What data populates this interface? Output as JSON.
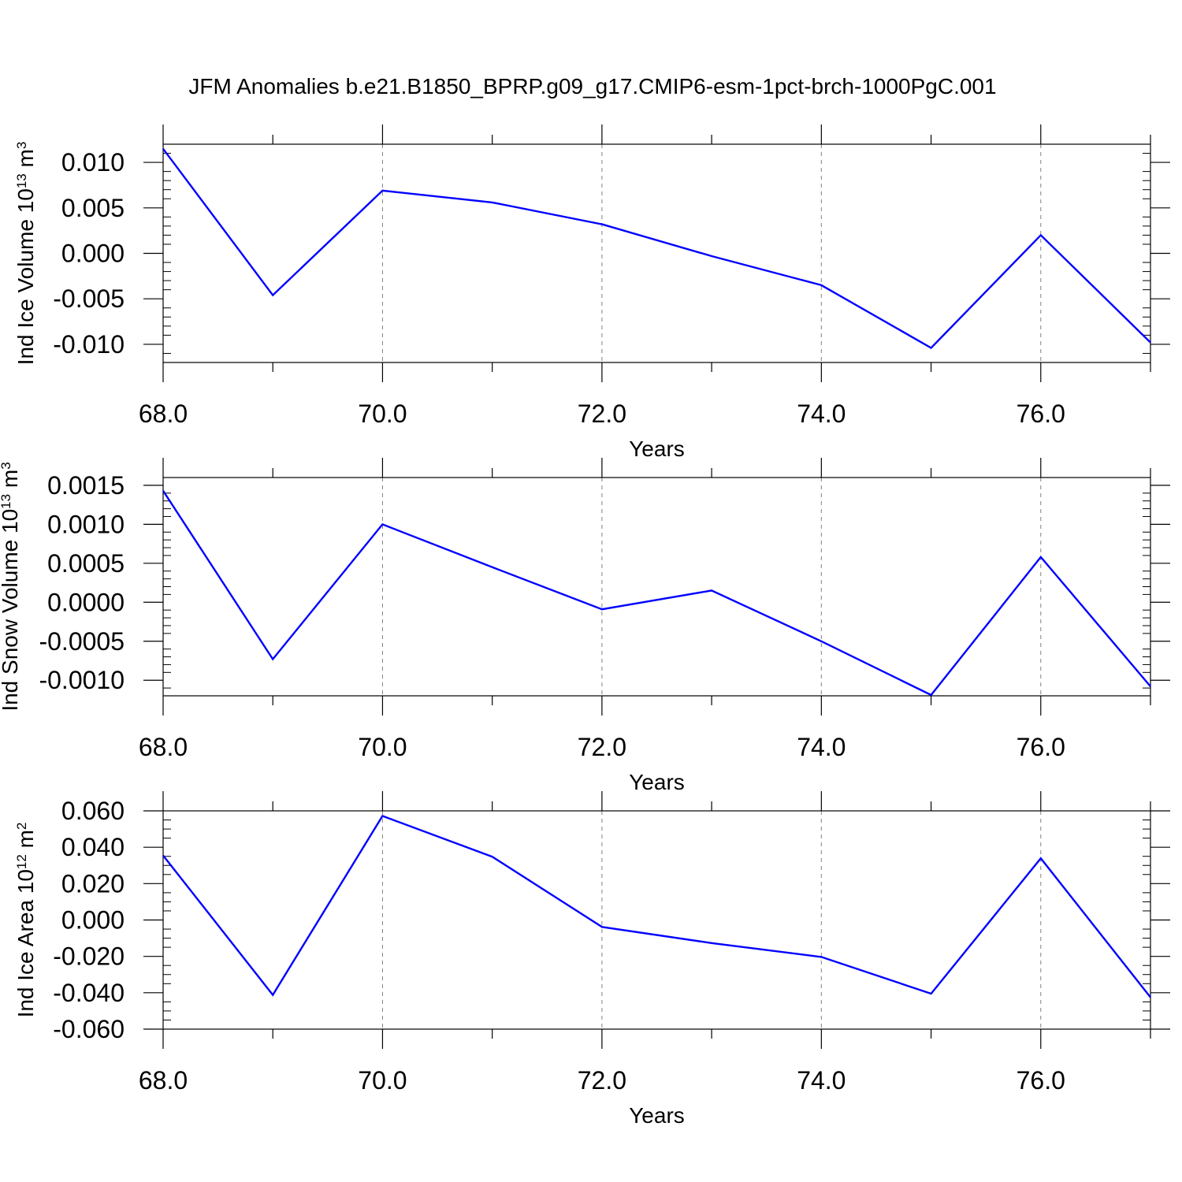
{
  "title": "JFM Anomalies b.e21.B1850_BPRP.g09_g17.CMIP6-esm-1pct-brch-1000PgC.001",
  "colors": {
    "line": "#0000ff",
    "axis": "#000000",
    "grid": "#808080",
    "background": "#ffffff"
  },
  "chart_data": [
    {
      "type": "line",
      "xlabel": "Years",
      "ylabel": {
        "main": "Ind Ice Volume 10",
        "exp": "13",
        "unit_pre": " m",
        "unit_exp": "3"
      },
      "xlim": [
        68,
        77
      ],
      "ylim": [
        -0.012,
        0.012
      ],
      "x_ticks": [
        68,
        70,
        72,
        74,
        76
      ],
      "x_tick_labels": [
        "68.0",
        "70.0",
        "72.0",
        "74.0",
        "76.0"
      ],
      "y_ticks": [
        0.01,
        0.005,
        0,
        -0.005,
        -0.01
      ],
      "y_tick_labels": [
        "0.010",
        "0.005",
        "0.000",
        "-0.005",
        "-0.010"
      ],
      "y_minor_step": 0.001,
      "grid": "vertical-dashed",
      "x": [
        68,
        69,
        70,
        71,
        72,
        73,
        74,
        75,
        76,
        77
      ],
      "values": [
        0.0115,
        -0.0046,
        0.0069,
        0.0056,
        0.0032,
        -0.0003,
        -0.0035,
        -0.0104,
        0.002,
        -0.0098
      ]
    },
    {
      "type": "line",
      "xlabel": "Years",
      "ylabel": {
        "main": "Ind Snow Volume 10",
        "exp": "13",
        "unit_pre": " m",
        "unit_exp": "3"
      },
      "xlim": [
        68,
        77
      ],
      "ylim": [
        -0.0012,
        0.0016
      ],
      "x_ticks": [
        68,
        70,
        72,
        74,
        76
      ],
      "x_tick_labels": [
        "68.0",
        "70.0",
        "72.0",
        "74.0",
        "76.0"
      ],
      "y_ticks": [
        0.0015,
        0.001,
        0.0005,
        0,
        -0.0005,
        -0.001
      ],
      "y_tick_labels": [
        "0.0015",
        "0.0010",
        "0.0005",
        "0.0000",
        "-0.0005",
        "-0.0010"
      ],
      "y_minor_step": 0.0001,
      "grid": "vertical-dashed",
      "x": [
        68,
        69,
        70,
        71,
        72,
        73,
        74,
        75,
        76,
        77
      ],
      "values": [
        0.00143,
        -0.00073,
        0.001,
        0.00045,
        -9e-05,
        0.00015,
        -0.0005,
        -0.00119,
        0.00058,
        -0.00108
      ]
    },
    {
      "type": "line",
      "xlabel": "Years",
      "ylabel": {
        "main": "Ind Ice Area 10",
        "exp": "12",
        "unit_pre": " m",
        "unit_exp": "2"
      },
      "xlim": [
        68,
        77
      ],
      "ylim": [
        -0.06,
        0.06
      ],
      "x_ticks": [
        68,
        70,
        72,
        74,
        76
      ],
      "x_tick_labels": [
        "68.0",
        "70.0",
        "72.0",
        "74.0",
        "76.0"
      ],
      "y_ticks": [
        0.06,
        0.04,
        0.02,
        0,
        -0.02,
        -0.04,
        -0.06
      ],
      "y_tick_labels": [
        "0.060",
        "0.040",
        "0.020",
        "0.000",
        "-0.020",
        "-0.040",
        "-0.060"
      ],
      "y_minor_step": 0.005,
      "grid": "vertical-dashed",
      "x": [
        68,
        69,
        70,
        71,
        72,
        73,
        74,
        75,
        76,
        77
      ],
      "values": [
        0.0355,
        -0.0412,
        0.0572,
        0.0348,
        -0.0038,
        -0.0127,
        -0.0203,
        -0.0405,
        0.0339,
        -0.0425
      ]
    }
  ]
}
